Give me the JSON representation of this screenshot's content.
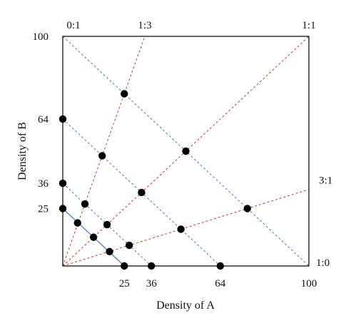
{
  "chart_data": {
    "type": "scatter",
    "xlabel": "Density of A",
    "ylabel": "Density of B",
    "xlim": [
      0,
      100
    ],
    "ylim": [
      0,
      100
    ],
    "x_ticks": [
      25,
      36,
      64,
      100
    ],
    "y_ticks": [
      25,
      36,
      64,
      100
    ],
    "grid": false,
    "ratio_lines": [
      {
        "label": "0:1",
        "a": 0,
        "b": 1,
        "color": "#cc3333"
      },
      {
        "label": "1:3",
        "a": 1,
        "b": 3,
        "color": "#cc3333"
      },
      {
        "label": "1:1",
        "a": 1,
        "b": 1,
        "color": "#cc3333"
      },
      {
        "label": "3:1",
        "a": 3,
        "b": 1,
        "color": "#cc3333"
      },
      {
        "label": "1:0",
        "a": 1,
        "b": 0,
        "color": "#cc3333"
      }
    ],
    "isoclines": [
      {
        "total": 100,
        "color": "#4477cc",
        "style": "dashed"
      },
      {
        "total": 64,
        "color": "#4477cc",
        "style": "dashed"
      },
      {
        "total": 36,
        "color": "#4477cc",
        "style": "dashed"
      },
      {
        "total": 25,
        "color": "#4477cc",
        "style": "solid"
      }
    ],
    "points": [
      {
        "x": 0,
        "y": 25
      },
      {
        "x": 0,
        "y": 36
      },
      {
        "x": 0,
        "y": 64
      },
      {
        "x": 25,
        "y": 0
      },
      {
        "x": 36,
        "y": 0
      },
      {
        "x": 64,
        "y": 0
      },
      {
        "x": 6,
        "y": 18.75
      },
      {
        "x": 12.5,
        "y": 12.5
      },
      {
        "x": 19,
        "y": 6.25
      },
      {
        "x": 9,
        "y": 27
      },
      {
        "x": 18,
        "y": 18
      },
      {
        "x": 27,
        "y": 9
      },
      {
        "x": 16,
        "y": 48
      },
      {
        "x": 32,
        "y": 32
      },
      {
        "x": 48,
        "y": 16
      },
      {
        "x": 25,
        "y": 75
      },
      {
        "x": 50,
        "y": 50
      },
      {
        "x": 75,
        "y": 25
      }
    ],
    "point_color": "#000000"
  }
}
